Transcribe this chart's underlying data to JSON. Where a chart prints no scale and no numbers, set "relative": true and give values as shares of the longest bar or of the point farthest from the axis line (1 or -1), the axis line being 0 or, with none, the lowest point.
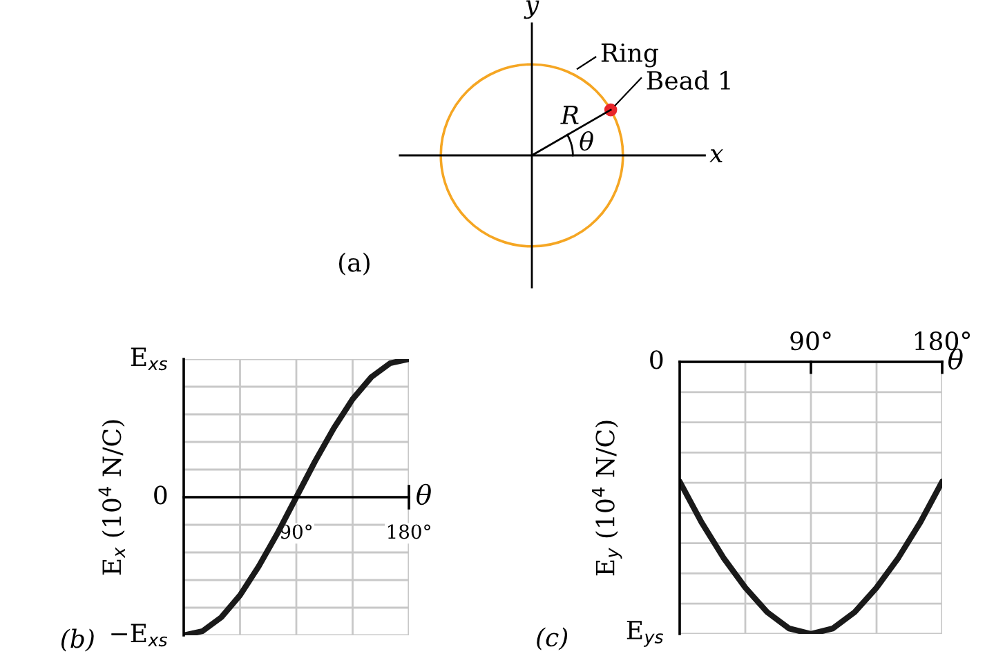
{
  "chart_data": [
    {
      "type": "other",
      "annotations": [
        "y",
        "x",
        "Ring",
        "Bead 1",
        "R",
        "θ",
        "(a)"
      ]
    },
    {
      "type": "line",
      "relative": true,
      "x": [
        0,
        15,
        30,
        45,
        60,
        75,
        90,
        105,
        120,
        135,
        150,
        165,
        180
      ],
      "series": [
        {
          "color": "#1a1a1a",
          "values": [
            -1,
            -0.97,
            -0.87,
            -0.71,
            -0.5,
            -0.26,
            0,
            0.26,
            0.5,
            0.71,
            0.87,
            0.97,
            1
          ]
        }
      ],
      "xlim": [
        0,
        180
      ],
      "xticks": [
        {
          "value": 45,
          "label": null
        },
        {
          "value": 90,
          "label": "90°"
        },
        {
          "value": 135,
          "label": null
        },
        {
          "value": 180,
          "label": "180°"
        }
      ],
      "xlabel": "θ",
      "ylabel": "E$_{x}$ (10$^{4}$ N/C)",
      "grid": true,
      "annotations": [
        "E$_{xs}$",
        "0",
        "−E$_{xs}$",
        "(b)"
      ]
    },
    {
      "type": "line",
      "relative": true,
      "x": [
        0,
        15,
        30,
        45,
        60,
        75,
        90,
        105,
        120,
        135,
        150,
        165,
        180
      ],
      "series": [
        {
          "color": "#1a1a1a",
          "values": [
            -0.44,
            -0.59,
            -0.72,
            -0.83,
            -0.92,
            -0.98,
            -1,
            -0.98,
            -0.92,
            -0.83,
            -0.72,
            -0.59,
            -0.44
          ]
        }
      ],
      "xlim": [
        0,
        180
      ],
      "xticks": [
        {
          "value": 45,
          "label": null
        },
        {
          "value": 90,
          "label": "90°"
        },
        {
          "value": 135,
          "label": null
        },
        {
          "value": 180,
          "label": "180°"
        }
      ],
      "xlabel": "θ",
      "ylabel": "E$_{y}$ (10$^{4}$ N/C)",
      "grid": true,
      "annotations": [
        "0",
        "E$_{ys}$",
        "(c)"
      ]
    }
  ]
}
